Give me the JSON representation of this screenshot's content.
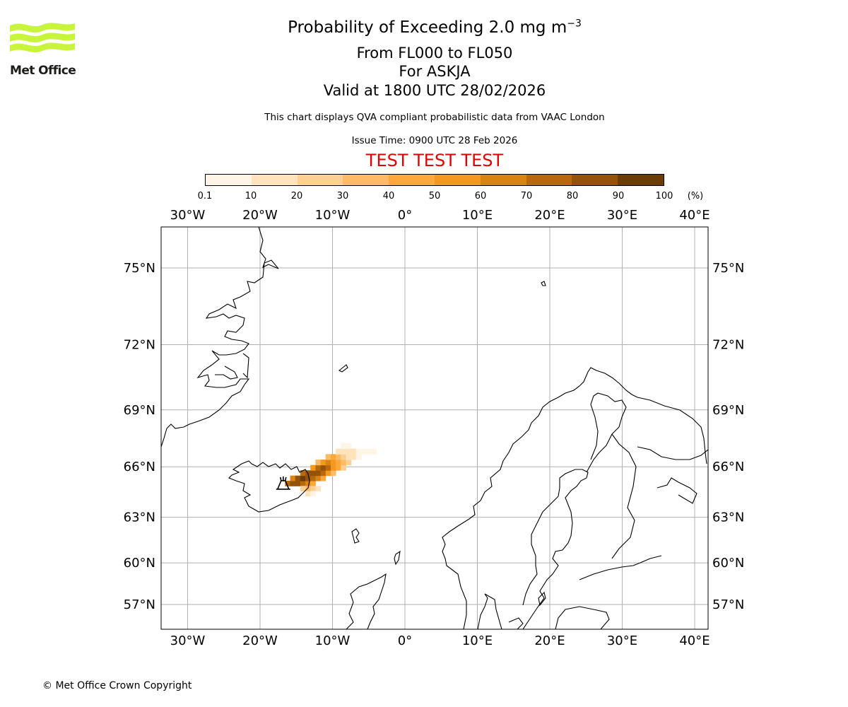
{
  "logo": {
    "text": "Met Office",
    "icon": "met-office-wave-logo",
    "color": "#c8f53c"
  },
  "header": {
    "title": "Probability of Exceeding 2.0 mg m",
    "title_superscript": "−3",
    "levels": "From FL000 to FL050",
    "volcano": "For ASKJA",
    "valid": "Valid at 1800 UTC 28/02/2026",
    "description": "This chart displays QVA compliant probabilistic data from VAAC London",
    "issue_time": "Issue Time: 0900 UTC 28 Feb 2026",
    "test_banner": "TEST TEST TEST",
    "test_color": "#e00000"
  },
  "colorbar": {
    "ticks": [
      "0.1",
      "10",
      "20",
      "30",
      "40",
      "50",
      "60",
      "70",
      "80",
      "90",
      "100"
    ],
    "unit": "(%)",
    "colors": [
      "#fff5e6",
      "#ffe3bd",
      "#fecf92",
      "#fdbb65",
      "#fca83a",
      "#f5981e",
      "#d98310",
      "#b9690c",
      "#955209",
      "#6b3c08"
    ]
  },
  "map": {
    "lon_range": [
      -34,
      42
    ],
    "lat_range": [
      55.5,
      76.5
    ],
    "lon_ticks": [
      "30°W",
      "20°W",
      "10°W",
      "0°",
      "10°E",
      "20°E",
      "30°E",
      "40°E"
    ],
    "lon_values": [
      -30,
      -20,
      -10,
      0,
      10,
      20,
      30,
      40
    ],
    "lat_ticks": [
      "75°N",
      "72°N",
      "69°N",
      "66°N",
      "63°N",
      "60°N",
      "57°N"
    ],
    "lat_values": [
      75,
      72,
      69,
      66,
      63,
      60,
      57
    ],
    "volcano_name": "ASKJA",
    "volcano_symbol": "volcano-icon",
    "volcano_location": {
      "lon": -16.8,
      "lat": 65.0
    },
    "ash_probability_cells": [
      {
        "lon": -16.2,
        "lat": 65.05,
        "p": 75
      },
      {
        "lon": -15.5,
        "lat": 65.05,
        "p": 80
      },
      {
        "lon": -14.8,
        "lat": 65.05,
        "p": 85
      },
      {
        "lon": -14.1,
        "lat": 65.05,
        "p": 70
      },
      {
        "lon": -13.4,
        "lat": 65.05,
        "p": 60
      },
      {
        "lon": -12.7,
        "lat": 65.05,
        "p": 45
      },
      {
        "lon": -15.5,
        "lat": 65.35,
        "p": 60
      },
      {
        "lon": -14.8,
        "lat": 65.35,
        "p": 80
      },
      {
        "lon": -14.1,
        "lat": 65.35,
        "p": 90
      },
      {
        "lon": -13.4,
        "lat": 65.35,
        "p": 85
      },
      {
        "lon": -12.7,
        "lat": 65.35,
        "p": 75
      },
      {
        "lon": -12.0,
        "lat": 65.35,
        "p": 60
      },
      {
        "lon": -11.3,
        "lat": 65.35,
        "p": 40
      },
      {
        "lon": -14.1,
        "lat": 65.65,
        "p": 70
      },
      {
        "lon": -13.4,
        "lat": 65.65,
        "p": 80
      },
      {
        "lon": -12.7,
        "lat": 65.65,
        "p": 85
      },
      {
        "lon": -12.0,
        "lat": 65.65,
        "p": 80
      },
      {
        "lon": -11.3,
        "lat": 65.65,
        "p": 70
      },
      {
        "lon": -10.6,
        "lat": 65.65,
        "p": 55
      },
      {
        "lon": -9.9,
        "lat": 65.65,
        "p": 35
      },
      {
        "lon": -12.7,
        "lat": 65.95,
        "p": 55
      },
      {
        "lon": -12.0,
        "lat": 65.95,
        "p": 70
      },
      {
        "lon": -11.3,
        "lat": 65.95,
        "p": 80
      },
      {
        "lon": -10.6,
        "lat": 65.95,
        "p": 70
      },
      {
        "lon": -9.9,
        "lat": 65.95,
        "p": 55
      },
      {
        "lon": -9.2,
        "lat": 65.95,
        "p": 40
      },
      {
        "lon": -8.5,
        "lat": 65.95,
        "p": 25
      },
      {
        "lon": -12.0,
        "lat": 66.25,
        "p": 35
      },
      {
        "lon": -11.3,
        "lat": 66.25,
        "p": 50
      },
      {
        "lon": -10.6,
        "lat": 66.25,
        "p": 60
      },
      {
        "lon": -9.9,
        "lat": 66.25,
        "p": 55
      },
      {
        "lon": -9.2,
        "lat": 66.25,
        "p": 45
      },
      {
        "lon": -8.5,
        "lat": 66.25,
        "p": 30
      },
      {
        "lon": -7.8,
        "lat": 66.25,
        "p": 20
      },
      {
        "lon": -10.6,
        "lat": 66.55,
        "p": 35
      },
      {
        "lon": -9.9,
        "lat": 66.55,
        "p": 40
      },
      {
        "lon": -9.2,
        "lat": 66.55,
        "p": 35
      },
      {
        "lon": -8.5,
        "lat": 66.55,
        "p": 25
      },
      {
        "lon": -7.8,
        "lat": 66.55,
        "p": 18
      },
      {
        "lon": -7.1,
        "lat": 66.55,
        "p": 12
      },
      {
        "lon": -6.4,
        "lat": 66.55,
        "p": 8
      },
      {
        "lon": -9.2,
        "lat": 66.85,
        "p": 15
      },
      {
        "lon": -8.5,
        "lat": 66.85,
        "p": 15
      },
      {
        "lon": -7.8,
        "lat": 66.85,
        "p": 12
      },
      {
        "lon": -7.1,
        "lat": 66.85,
        "p": 10
      },
      {
        "lon": -6.4,
        "lat": 66.85,
        "p": 8
      },
      {
        "lon": -5.7,
        "lat": 66.85,
        "p": 6
      },
      {
        "lon": -5.0,
        "lat": 66.85,
        "p": 5
      },
      {
        "lon": -4.3,
        "lat": 66.85,
        "p": 4
      },
      {
        "lon": -13.4,
        "lat": 64.75,
        "p": 30
      },
      {
        "lon": -12.7,
        "lat": 64.75,
        "p": 25
      },
      {
        "lon": -12.0,
        "lat": 64.75,
        "p": 15
      },
      {
        "lon": -14.1,
        "lat": 64.75,
        "p": 20
      },
      {
        "lon": -13.4,
        "lat": 64.45,
        "p": 10
      },
      {
        "lon": -12.7,
        "lat": 64.45,
        "p": 8
      },
      {
        "lon": -8.5,
        "lat": 67.15,
        "p": 5
      },
      {
        "lon": -7.8,
        "lat": 67.15,
        "p": 4
      }
    ]
  },
  "footer": {
    "copyright": "© Met Office Crown Copyright"
  }
}
